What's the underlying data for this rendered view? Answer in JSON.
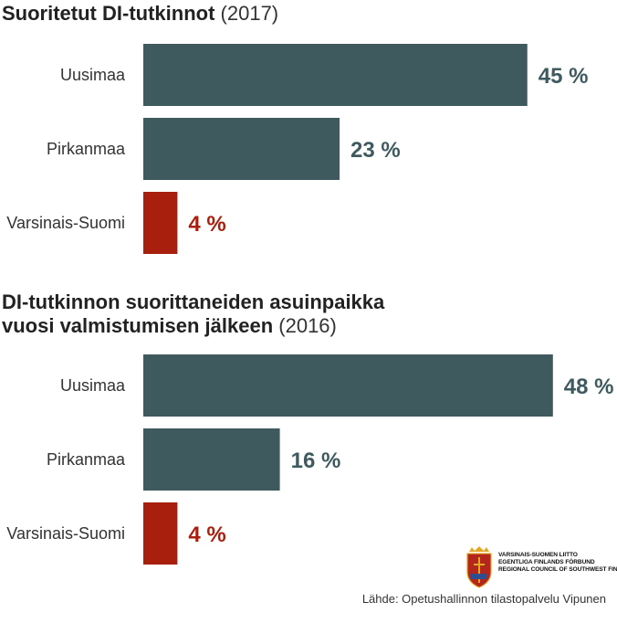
{
  "colors": {
    "primary": "#3f5a5f",
    "highlight": "#a8200d"
  },
  "charts": [
    {
      "title": "Suoritetut DI-tutkinnot",
      "year": "(2017)"
    },
    {
      "title_line1": "DI-tutkinnon suorittaneiden asuinpaikka",
      "title_line2": "vuosi valmistumisen jälkeen",
      "year": "(2016)"
    }
  ],
  "chart_data": [
    {
      "type": "bar",
      "orientation": "horizontal",
      "title": "Suoritetut DI-tutkinnot (2017)",
      "categories": [
        "Uusimaa",
        "Pirkanmaa",
        "Varsinais-Suomi"
      ],
      "values": [
        45,
        23,
        4
      ],
      "value_labels": [
        "45 %",
        "23 %",
        "4 %"
      ],
      "unit": "%",
      "highlight_category": "Varsinais-Suomi"
    },
    {
      "type": "bar",
      "orientation": "horizontal",
      "title": "DI-tutkinnon suorittaneiden asuinpaikka vuosi valmistumisen jälkeen (2016)",
      "categories": [
        "Uusimaa",
        "Pirkanmaa",
        "Varsinais-Suomi"
      ],
      "values": [
        48,
        16,
        4
      ],
      "value_labels": [
        "48 %",
        "16 %",
        "4 %"
      ],
      "unit": "%",
      "highlight_category": "Varsinais-Suomi"
    }
  ],
  "logo": {
    "line1": "VARSINAIS-SUOMEN LIITTO",
    "line2": "EGENTLIGA FINLANDS FÖRBUND",
    "line3": "REGIONAL COUNCIL OF SOUTHWEST FINLAND",
    "icon": "coat-of-arms-icon"
  },
  "source": "Lähde: Opetushallinnon tilastopalvelu Vipunen"
}
